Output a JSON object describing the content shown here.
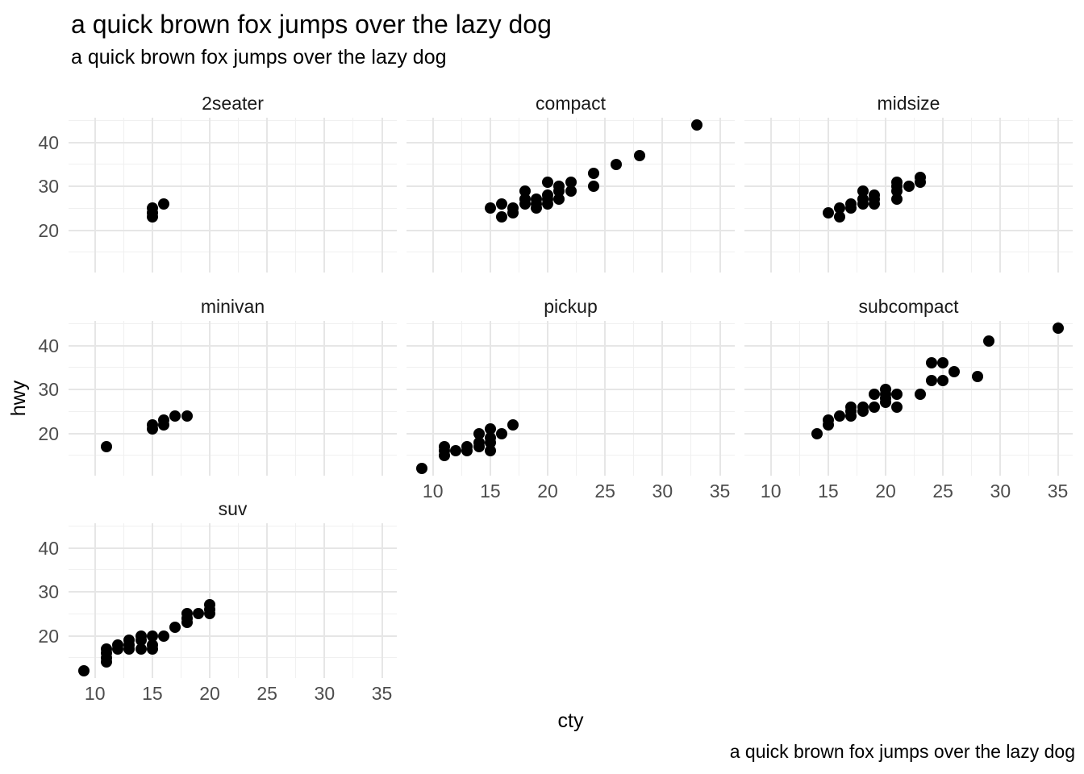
{
  "title": "a quick brown fox jumps over the lazy dog",
  "subtitle": "a quick brown fox jumps over the lazy dog",
  "caption": "a quick brown fox jumps over the lazy dog",
  "axes": {
    "x_label": "cty",
    "y_label": "hwy",
    "x_ticks": [
      10,
      15,
      20,
      25,
      30,
      35
    ],
    "x_minor": [
      12.5,
      17.5,
      22.5,
      27.5,
      32.5
    ],
    "y_ticks": [
      20,
      30,
      40
    ],
    "y_minor": [
      15,
      25,
      35,
      45
    ],
    "x_range": [
      7.7,
      36.3
    ],
    "y_range": [
      10.4,
      45.6
    ],
    "grid": "major+minor",
    "legend": "none"
  },
  "colors": {
    "background": "#ffffff",
    "point": "#000000",
    "grid_major": "#e6e6e6",
    "grid_minor": "#f0f0f0",
    "tick_label": "#4d4d4d",
    "strip_label": "#1a1a1a",
    "text": "#000000"
  },
  "chart_data": {
    "type": "scatter",
    "title": "a quick brown fox jumps over the lazy dog",
    "subtitle": "a quick brown fox jumps over the lazy dog",
    "caption": "a quick brown fox jumps over the lazy dog",
    "xlabel": "cty",
    "ylabel": "hwy",
    "facet_by": "class",
    "facet_columns": 3,
    "xlim": [
      7.7,
      36.3
    ],
    "ylim": [
      10.4,
      45.6
    ],
    "facets": [
      {
        "label": "2seater",
        "points": [
          [
            15,
            23
          ],
          [
            15,
            24
          ],
          [
            15,
            25
          ],
          [
            16,
            26
          ]
        ]
      },
      {
        "label": "compact",
        "points": [
          [
            15,
            25
          ],
          [
            16,
            23
          ],
          [
            16,
            26
          ],
          [
            17,
            24
          ],
          [
            17,
            25
          ],
          [
            18,
            26
          ],
          [
            18,
            27
          ],
          [
            18,
            29
          ],
          [
            19,
            25
          ],
          [
            19,
            26
          ],
          [
            19,
            27
          ],
          [
            20,
            26
          ],
          [
            20,
            27
          ],
          [
            20,
            28
          ],
          [
            20,
            31
          ],
          [
            21,
            27
          ],
          [
            21,
            29
          ],
          [
            21,
            30
          ],
          [
            22,
            29
          ],
          [
            22,
            31
          ],
          [
            24,
            30
          ],
          [
            24,
            33
          ],
          [
            26,
            35
          ],
          [
            28,
            37
          ],
          [
            33,
            44
          ]
        ]
      },
      {
        "label": "midsize",
        "points": [
          [
            15,
            24
          ],
          [
            16,
            23
          ],
          [
            16,
            25
          ],
          [
            17,
            25
          ],
          [
            17,
            26
          ],
          [
            18,
            26
          ],
          [
            18,
            27
          ],
          [
            18,
            29
          ],
          [
            19,
            26
          ],
          [
            19,
            27
          ],
          [
            19,
            28
          ],
          [
            21,
            27
          ],
          [
            21,
            29
          ],
          [
            21,
            30
          ],
          [
            21,
            31
          ],
          [
            22,
            30
          ],
          [
            23,
            31
          ],
          [
            23,
            32
          ]
        ]
      },
      {
        "label": "minivan",
        "points": [
          [
            11,
            17
          ],
          [
            15,
            21
          ],
          [
            15,
            22
          ],
          [
            16,
            22
          ],
          [
            16,
            23
          ],
          [
            17,
            24
          ],
          [
            18,
            24
          ]
        ]
      },
      {
        "label": "pickup",
        "points": [
          [
            9,
            12
          ],
          [
            11,
            15
          ],
          [
            11,
            16
          ],
          [
            11,
            17
          ],
          [
            12,
            16
          ],
          [
            13,
            16
          ],
          [
            13,
            17
          ],
          [
            14,
            17
          ],
          [
            14,
            18
          ],
          [
            14,
            20
          ],
          [
            15,
            16
          ],
          [
            15,
            18
          ],
          [
            15,
            19
          ],
          [
            15,
            21
          ],
          [
            16,
            20
          ],
          [
            17,
            22
          ]
        ]
      },
      {
        "label": "subcompact",
        "points": [
          [
            14,
            20
          ],
          [
            15,
            22
          ],
          [
            15,
            23
          ],
          [
            16,
            24
          ],
          [
            17,
            24
          ],
          [
            17,
            25
          ],
          [
            17,
            26
          ],
          [
            18,
            25
          ],
          [
            18,
            26
          ],
          [
            19,
            26
          ],
          [
            19,
            29
          ],
          [
            20,
            27
          ],
          [
            20,
            28
          ],
          [
            20,
            29
          ],
          [
            20,
            30
          ],
          [
            21,
            26
          ],
          [
            21,
            29
          ],
          [
            23,
            29
          ],
          [
            24,
            32
          ],
          [
            24,
            36
          ],
          [
            25,
            32
          ],
          [
            25,
            36
          ],
          [
            26,
            34
          ],
          [
            28,
            33
          ],
          [
            29,
            41
          ],
          [
            35,
            44
          ]
        ]
      },
      {
        "label": "suv",
        "points": [
          [
            9,
            12
          ],
          [
            11,
            14
          ],
          [
            11,
            15
          ],
          [
            11,
            16
          ],
          [
            11,
            17
          ],
          [
            12,
            17
          ],
          [
            12,
            18
          ],
          [
            13,
            17
          ],
          [
            13,
            18
          ],
          [
            13,
            19
          ],
          [
            14,
            17
          ],
          [
            14,
            19
          ],
          [
            14,
            20
          ],
          [
            15,
            17
          ],
          [
            15,
            18
          ],
          [
            15,
            20
          ],
          [
            16,
            20
          ],
          [
            17,
            22
          ],
          [
            18,
            23
          ],
          [
            18,
            24
          ],
          [
            18,
            25
          ],
          [
            19,
            25
          ],
          [
            20,
            25
          ],
          [
            20,
            26
          ],
          [
            20,
            27
          ]
        ]
      }
    ]
  }
}
